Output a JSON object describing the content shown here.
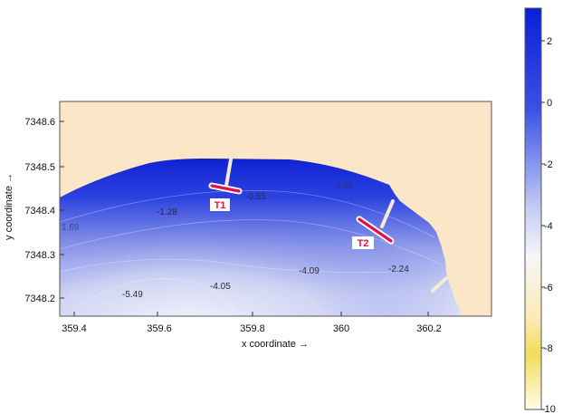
{
  "axes": {
    "x_title": "x coordinate →",
    "y_title": "y coordinate →",
    "x_ticks": [
      "359.4",
      "359.6",
      "359.8",
      "360",
      "360.2"
    ],
    "y_ticks": [
      "7348.6",
      "7348.5",
      "7348.4",
      "7348.3",
      "7348.2"
    ]
  },
  "colorbar": {
    "ticks": [
      "2",
      "0",
      "-2",
      "-4",
      "-6",
      "-8",
      "-10"
    ],
    "colors": {
      "top": "#0a1fd6",
      "upper": "#3a50e6",
      "mid": "#c6cdf2",
      "white": "#f8f8fa",
      "yellow": "#f2dc5a",
      "bottom": "#fffde8"
    }
  },
  "contour_labels": [
    {
      "text": "-0.55"
    },
    {
      "text": "-1.28"
    },
    {
      "text": "-4.09"
    },
    {
      "text": "-2.24"
    },
    {
      "text": "-4.05"
    },
    {
      "text": "-5.49"
    },
    {
      "text": "1.69"
    },
    {
      "text": "0.69"
    }
  ],
  "transects": [
    {
      "label": "T1"
    },
    {
      "label": "T2"
    }
  ],
  "colors": {
    "land": "#fbe6c8",
    "water_deep": "#e9ecf8",
    "water_shallow": "#1226d8",
    "transect": "#e0104a"
  }
}
